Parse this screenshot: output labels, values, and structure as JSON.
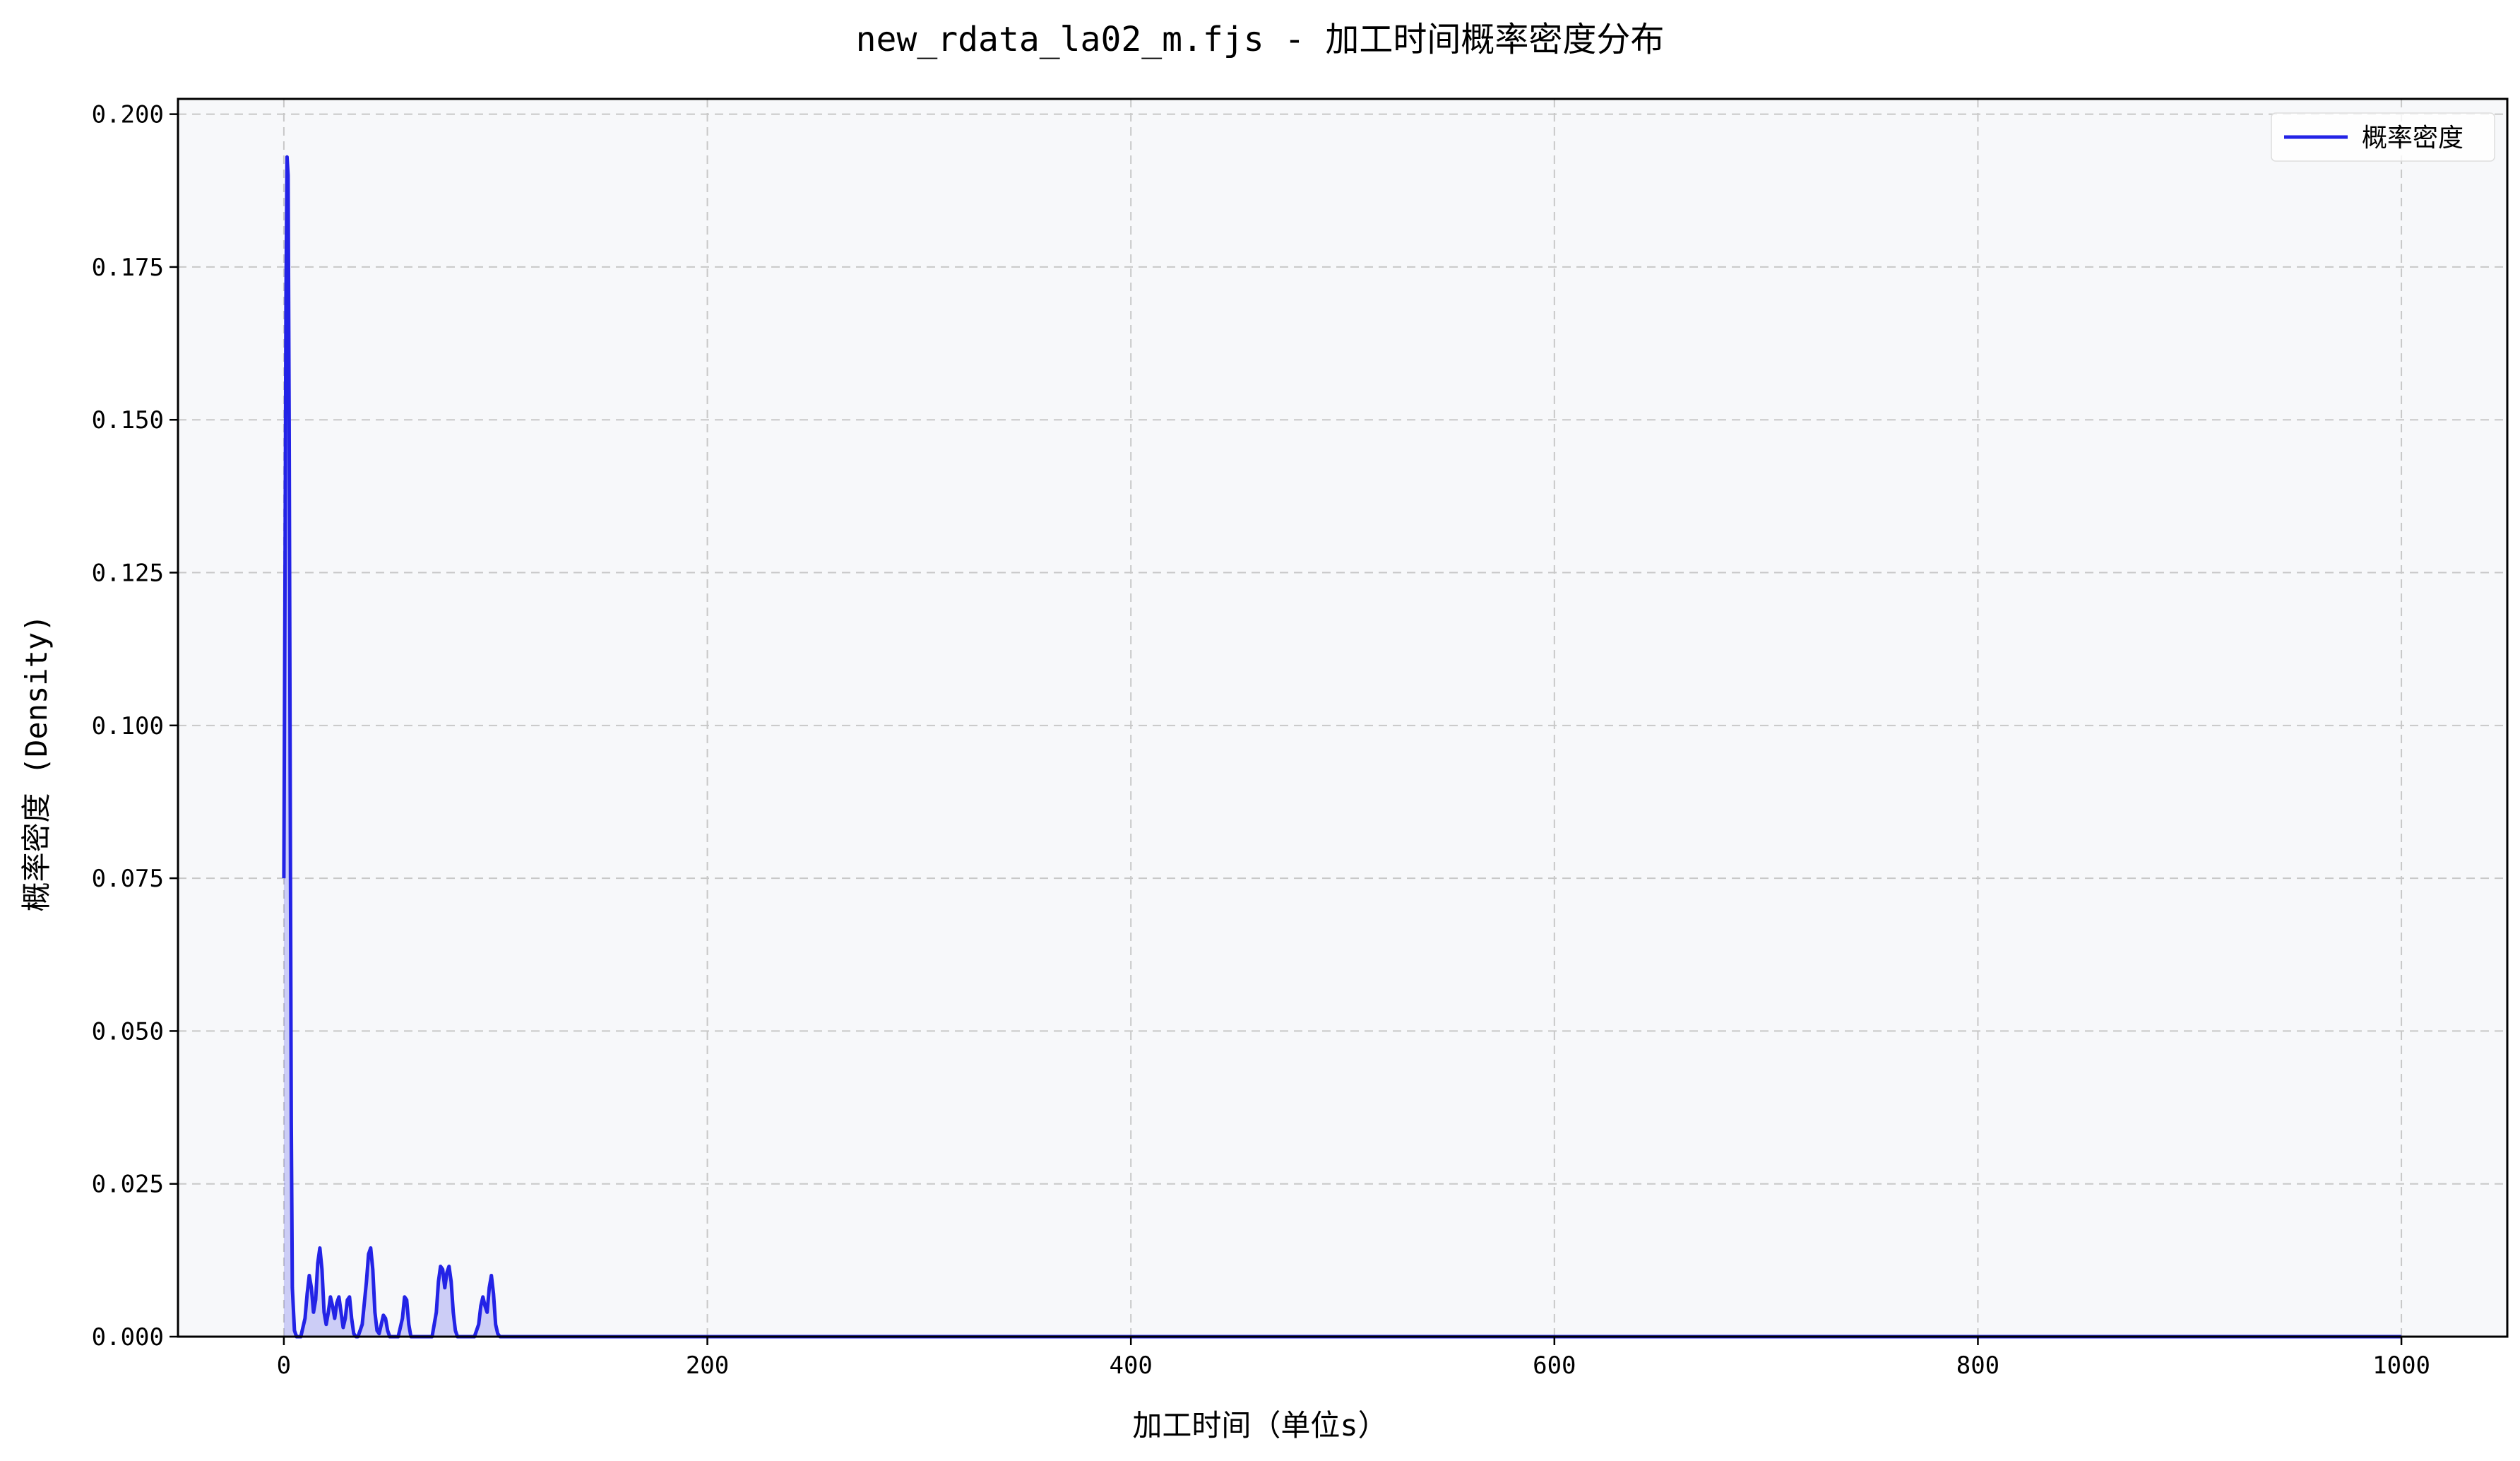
{
  "chart_data": {
    "type": "area",
    "title": "new_rdata_la02_m.fjs - 加工时间概率密度分布",
    "xlabel": "加工时间（单位s）",
    "ylabel": "概率密度 (Density)",
    "xlim": [
      -50,
      1050
    ],
    "ylim": [
      0,
      0.2025
    ],
    "x_ticks": [
      0,
      200,
      400,
      600,
      800,
      1000
    ],
    "y_ticks": [
      0.0,
      0.025,
      0.05,
      0.075,
      0.1,
      0.125,
      0.15,
      0.175,
      0.2
    ],
    "y_tick_labels": [
      "0.000",
      "0.025",
      "0.050",
      "0.075",
      "0.100",
      "0.125",
      "0.150",
      "0.175",
      "0.200"
    ],
    "grid": true,
    "legend_position": "top-right",
    "background_color": "#f7f8fa",
    "series": [
      {
        "name": "概率密度",
        "color": "#2323e6",
        "fill_color": "#2323e6",
        "x": [
          0,
          0.5,
          1,
          1.5,
          2,
          2.5,
          3,
          3.5,
          4,
          5,
          6,
          8,
          10,
          11,
          12,
          13,
          14,
          15,
          16,
          17,
          18,
          19,
          20,
          21,
          22,
          23,
          24,
          25,
          26,
          27,
          28,
          29,
          30,
          31,
          32,
          33,
          34,
          35,
          37,
          39,
          40,
          41,
          42,
          43,
          44,
          45,
          46,
          47,
          48,
          49,
          50,
          51,
          52,
          54,
          56,
          57,
          58,
          59,
          60,
          62,
          70,
          72,
          73,
          74,
          75,
          76,
          77,
          78,
          79,
          80,
          81,
          82,
          83,
          84,
          85,
          88,
          90,
          92,
          93,
          94,
          95,
          96,
          97,
          98,
          99,
          100,
          101,
          102,
          104,
          1000
        ],
        "y": [
          0.075,
          0.12,
          0.17,
          0.193,
          0.19,
          0.15,
          0.09,
          0.035,
          0.008,
          0.001,
          0.0,
          0.0,
          0.003,
          0.007,
          0.01,
          0.008,
          0.004,
          0.006,
          0.012,
          0.0145,
          0.011,
          0.004,
          0.002,
          0.004,
          0.0065,
          0.005,
          0.003,
          0.0055,
          0.0065,
          0.004,
          0.0015,
          0.003,
          0.006,
          0.0065,
          0.003,
          0.0005,
          0.0,
          0.0,
          0.002,
          0.009,
          0.0135,
          0.0145,
          0.011,
          0.004,
          0.001,
          0.0005,
          0.002,
          0.0035,
          0.003,
          0.001,
          0.0,
          0.0,
          0.0,
          0.0,
          0.003,
          0.0065,
          0.006,
          0.002,
          0.0,
          0.0,
          0.0,
          0.004,
          0.009,
          0.0115,
          0.011,
          0.008,
          0.0105,
          0.0115,
          0.009,
          0.004,
          0.001,
          0.0,
          0.0,
          0.0,
          0.0,
          0.0,
          0.0,
          0.002,
          0.005,
          0.0065,
          0.005,
          0.004,
          0.008,
          0.01,
          0.007,
          0.002,
          0.0005,
          0.0,
          0.0,
          0.0
        ]
      }
    ]
  }
}
